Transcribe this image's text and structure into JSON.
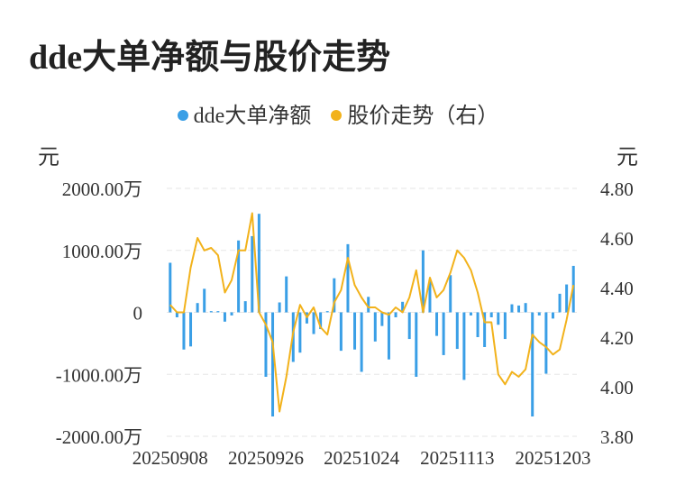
{
  "chart_data": {
    "type": "bar+line",
    "title": "dde大单净额与股价走势",
    "legend": [
      {
        "label": "dde大单净额",
        "color": "#3a9fe6"
      },
      {
        "label": "股价走势（右）",
        "color": "#f2b21b"
      }
    ],
    "left_unit": "元",
    "right_unit": "元",
    "y_left": {
      "ylim": [
        -2000,
        2000
      ],
      "ticks": [
        "2000.00万",
        "1000.00万",
        "0",
        "-1000.00万",
        "-2000.00万"
      ],
      "tick_values": [
        2000,
        1000,
        0,
        -1000,
        -2000
      ]
    },
    "y_right": {
      "ylim": [
        3.8,
        4.8
      ],
      "ticks": [
        "4.80",
        "4.60",
        "4.40",
        "4.20",
        "4.00",
        "3.80"
      ],
      "tick_values": [
        4.8,
        4.6,
        4.4,
        4.2,
        4.0,
        3.8
      ]
    },
    "x_tick_labels": [
      {
        "label": "20250908",
        "index": 0
      },
      {
        "label": "20250926",
        "index": 14
      },
      {
        "label": "20251024",
        "index": 28
      },
      {
        "label": "20251113",
        "index": 42
      },
      {
        "label": "20251203",
        "index": 56
      }
    ],
    "grid": true,
    "legend_position": "top-center",
    "series": [
      {
        "name": "dde大单净额",
        "type": "bar",
        "unit": "万",
        "values": [
          800,
          -80,
          -600,
          -550,
          150,
          380,
          20,
          20,
          -150,
          -50,
          1160,
          180,
          1230,
          1590,
          -1040,
          -1680,
          160,
          580,
          -800,
          -650,
          -180,
          -350,
          -270,
          20,
          550,
          -620,
          1100,
          -600,
          -960,
          250,
          -470,
          -220,
          -760,
          -80,
          170,
          -430,
          -1040,
          1000,
          530,
          -380,
          -690,
          600,
          -590,
          -1090,
          -50,
          -400,
          -560,
          -80,
          -200,
          -430,
          130,
          110,
          150,
          -1680,
          -50,
          -990,
          -100,
          300,
          450,
          750
        ]
      },
      {
        "name": "股价走势（右）",
        "type": "line",
        "values": [
          4.33,
          4.3,
          4.3,
          4.48,
          4.6,
          4.55,
          4.56,
          4.53,
          4.38,
          4.43,
          4.55,
          4.55,
          4.7,
          4.3,
          4.25,
          4.18,
          3.9,
          4.04,
          4.22,
          4.33,
          4.28,
          4.32,
          4.24,
          4.21,
          4.34,
          4.39,
          4.52,
          4.41,
          4.36,
          4.32,
          4.32,
          4.3,
          4.29,
          4.32,
          4.3,
          4.36,
          4.47,
          4.3,
          4.44,
          4.36,
          4.39,
          4.46,
          4.55,
          4.52,
          4.47,
          4.38,
          4.26,
          4.26,
          4.05,
          4.01,
          4.06,
          4.04,
          4.07,
          4.21,
          4.18,
          4.16,
          4.13,
          4.15,
          4.27,
          4.41
        ]
      }
    ]
  }
}
